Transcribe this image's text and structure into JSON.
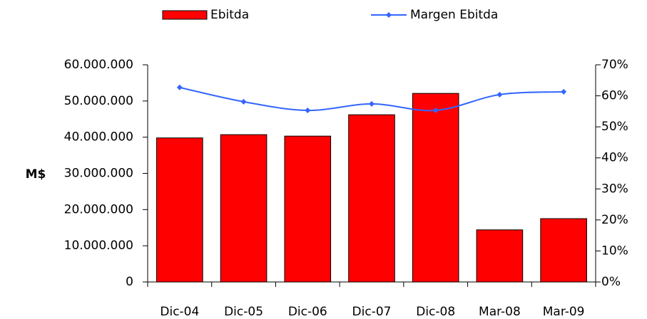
{
  "chart_data": {
    "type": "bar-line",
    "y_label": "M$",
    "categories": [
      "Dic-04",
      "Dic-05",
      "Dic-06",
      "Dic-07",
      "Dic-08",
      "Mar-08",
      "Mar-09"
    ],
    "series": [
      {
        "name": "Ebitda",
        "type": "bar",
        "color": "#ff0000",
        "values": [
          39800000,
          40700000,
          40300000,
          46200000,
          52100000,
          14400000,
          17500000
        ]
      },
      {
        "name": "Margen Ebitda",
        "type": "line",
        "axis": "y2",
        "color": "#3366ff",
        "values": [
          62.7,
          58.1,
          55.3,
          57.4,
          55.3,
          60.4,
          61.3
        ]
      }
    ],
    "ylim": [
      0,
      60000000
    ],
    "yticks": [
      0,
      {
        "value": 10000000,
        "label": "10.000.000"
      },
      {
        "value": 20000000,
        "label": "20.000.000"
      },
      {
        "value": 30000000,
        "label": "30.000.000"
      },
      {
        "value": 40000000,
        "label": "40.000.000"
      },
      {
        "value": 50000000,
        "label": "50.000.000"
      },
      {
        "value": 60000000,
        "label": "60.000.000"
      }
    ],
    "y2lim": [
      0,
      70
    ],
    "y2ticks": [
      {
        "value": 0,
        "label": "0%"
      },
      {
        "value": 10,
        "label": "10%"
      },
      {
        "value": 20,
        "label": "20%"
      },
      {
        "value": 30,
        "label": "30%"
      },
      {
        "value": 40,
        "label": "40%"
      },
      {
        "value": 50,
        "label": "50%"
      },
      {
        "value": 60,
        "label": "60%"
      },
      {
        "value": 70,
        "label": "70%"
      }
    ],
    "legend": "top"
  }
}
